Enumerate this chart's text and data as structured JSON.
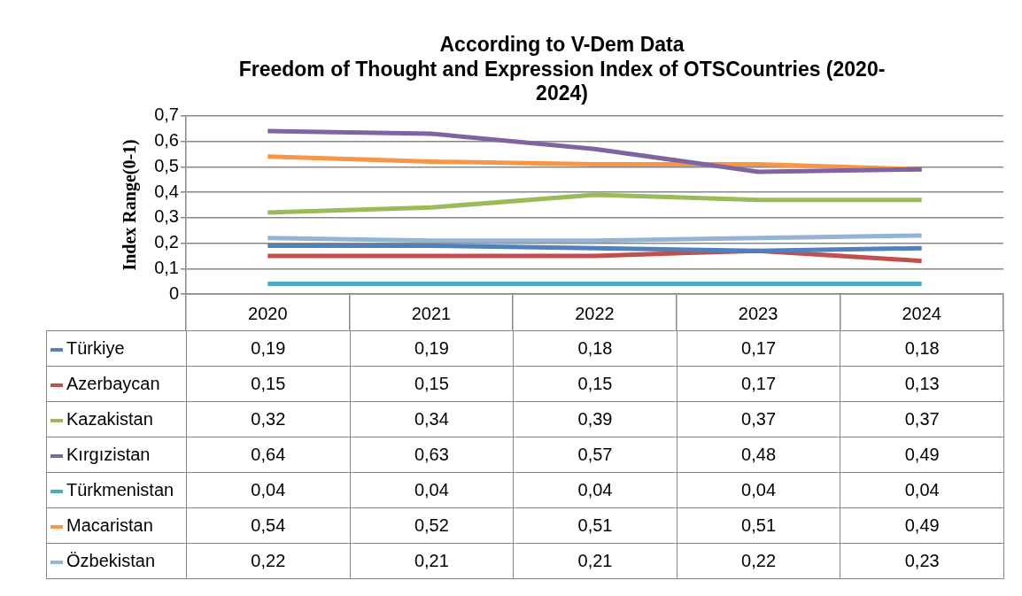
{
  "chart_data": {
    "type": "line",
    "title": [
      "According to V-Dem Data",
      "Freedom of Thought and Expression Index of OTSCountries (2020-",
      "2024)"
    ],
    "ylabel": "Index Range(0-1)",
    "categories": [
      "2020",
      "2021",
      "2022",
      "2023",
      "2024"
    ],
    "series": [
      {
        "name": "Türkiye",
        "color": "#4f81bd",
        "values": [
          0.19,
          0.19,
          0.18,
          0.17,
          0.18
        ],
        "value_labels": [
          "0,19",
          "0,19",
          "0,18",
          "0,17",
          "0,18"
        ]
      },
      {
        "name": "Azerbaycan",
        "color": "#c0504d",
        "values": [
          0.15,
          0.15,
          0.15,
          0.17,
          0.13
        ],
        "value_labels": [
          "0,15",
          "0,15",
          "0,15",
          "0,17",
          "0,13"
        ]
      },
      {
        "name": "Kazakistan",
        "color": "#9bbb59",
        "values": [
          0.32,
          0.34,
          0.39,
          0.37,
          0.37
        ],
        "value_labels": [
          "0,32",
          "0,34",
          "0,39",
          "0,37",
          "0,37"
        ]
      },
      {
        "name": "Kırgızistan",
        "color": "#8064a2",
        "values": [
          0.64,
          0.63,
          0.57,
          0.48,
          0.49
        ],
        "value_labels": [
          "0,64",
          "0,63",
          "0,57",
          "0,48",
          "0,49"
        ]
      },
      {
        "name": "Türkmenistan",
        "color": "#4bacc6",
        "values": [
          0.04,
          0.04,
          0.04,
          0.04,
          0.04
        ],
        "value_labels": [
          "0,04",
          "0,04",
          "0,04",
          "0,04",
          "0,04"
        ]
      },
      {
        "name": "Macaristan",
        "color": "#f79646",
        "values": [
          0.54,
          0.52,
          0.51,
          0.51,
          0.49
        ],
        "value_labels": [
          "0,54",
          "0,52",
          "0,51",
          "0,51",
          "0,49"
        ]
      },
      {
        "name": "Özbekistan",
        "color": "#95b3d7",
        "values": [
          0.22,
          0.21,
          0.21,
          0.22,
          0.23
        ],
        "value_labels": [
          "0,22",
          "0,21",
          "0,21",
          "0,22",
          "0,23"
        ]
      }
    ],
    "ylim": [
      0,
      0.7
    ],
    "yticks": [
      0,
      {
        "value": 0.1,
        "label": "0,1"
      },
      {
        "value": 0.2,
        "label": "0,2"
      },
      {
        "value": 0.3,
        "label": "0,3"
      },
      {
        "value": 0.4,
        "label": "0,4"
      },
      {
        "value": 0.5,
        "label": "0,5"
      },
      {
        "value": 0.6,
        "label": "0,6"
      },
      {
        "value": 0.7,
        "label": "0,7"
      }
    ],
    "grid": "y",
    "legend": "bottom left",
    "marker": "none"
  }
}
